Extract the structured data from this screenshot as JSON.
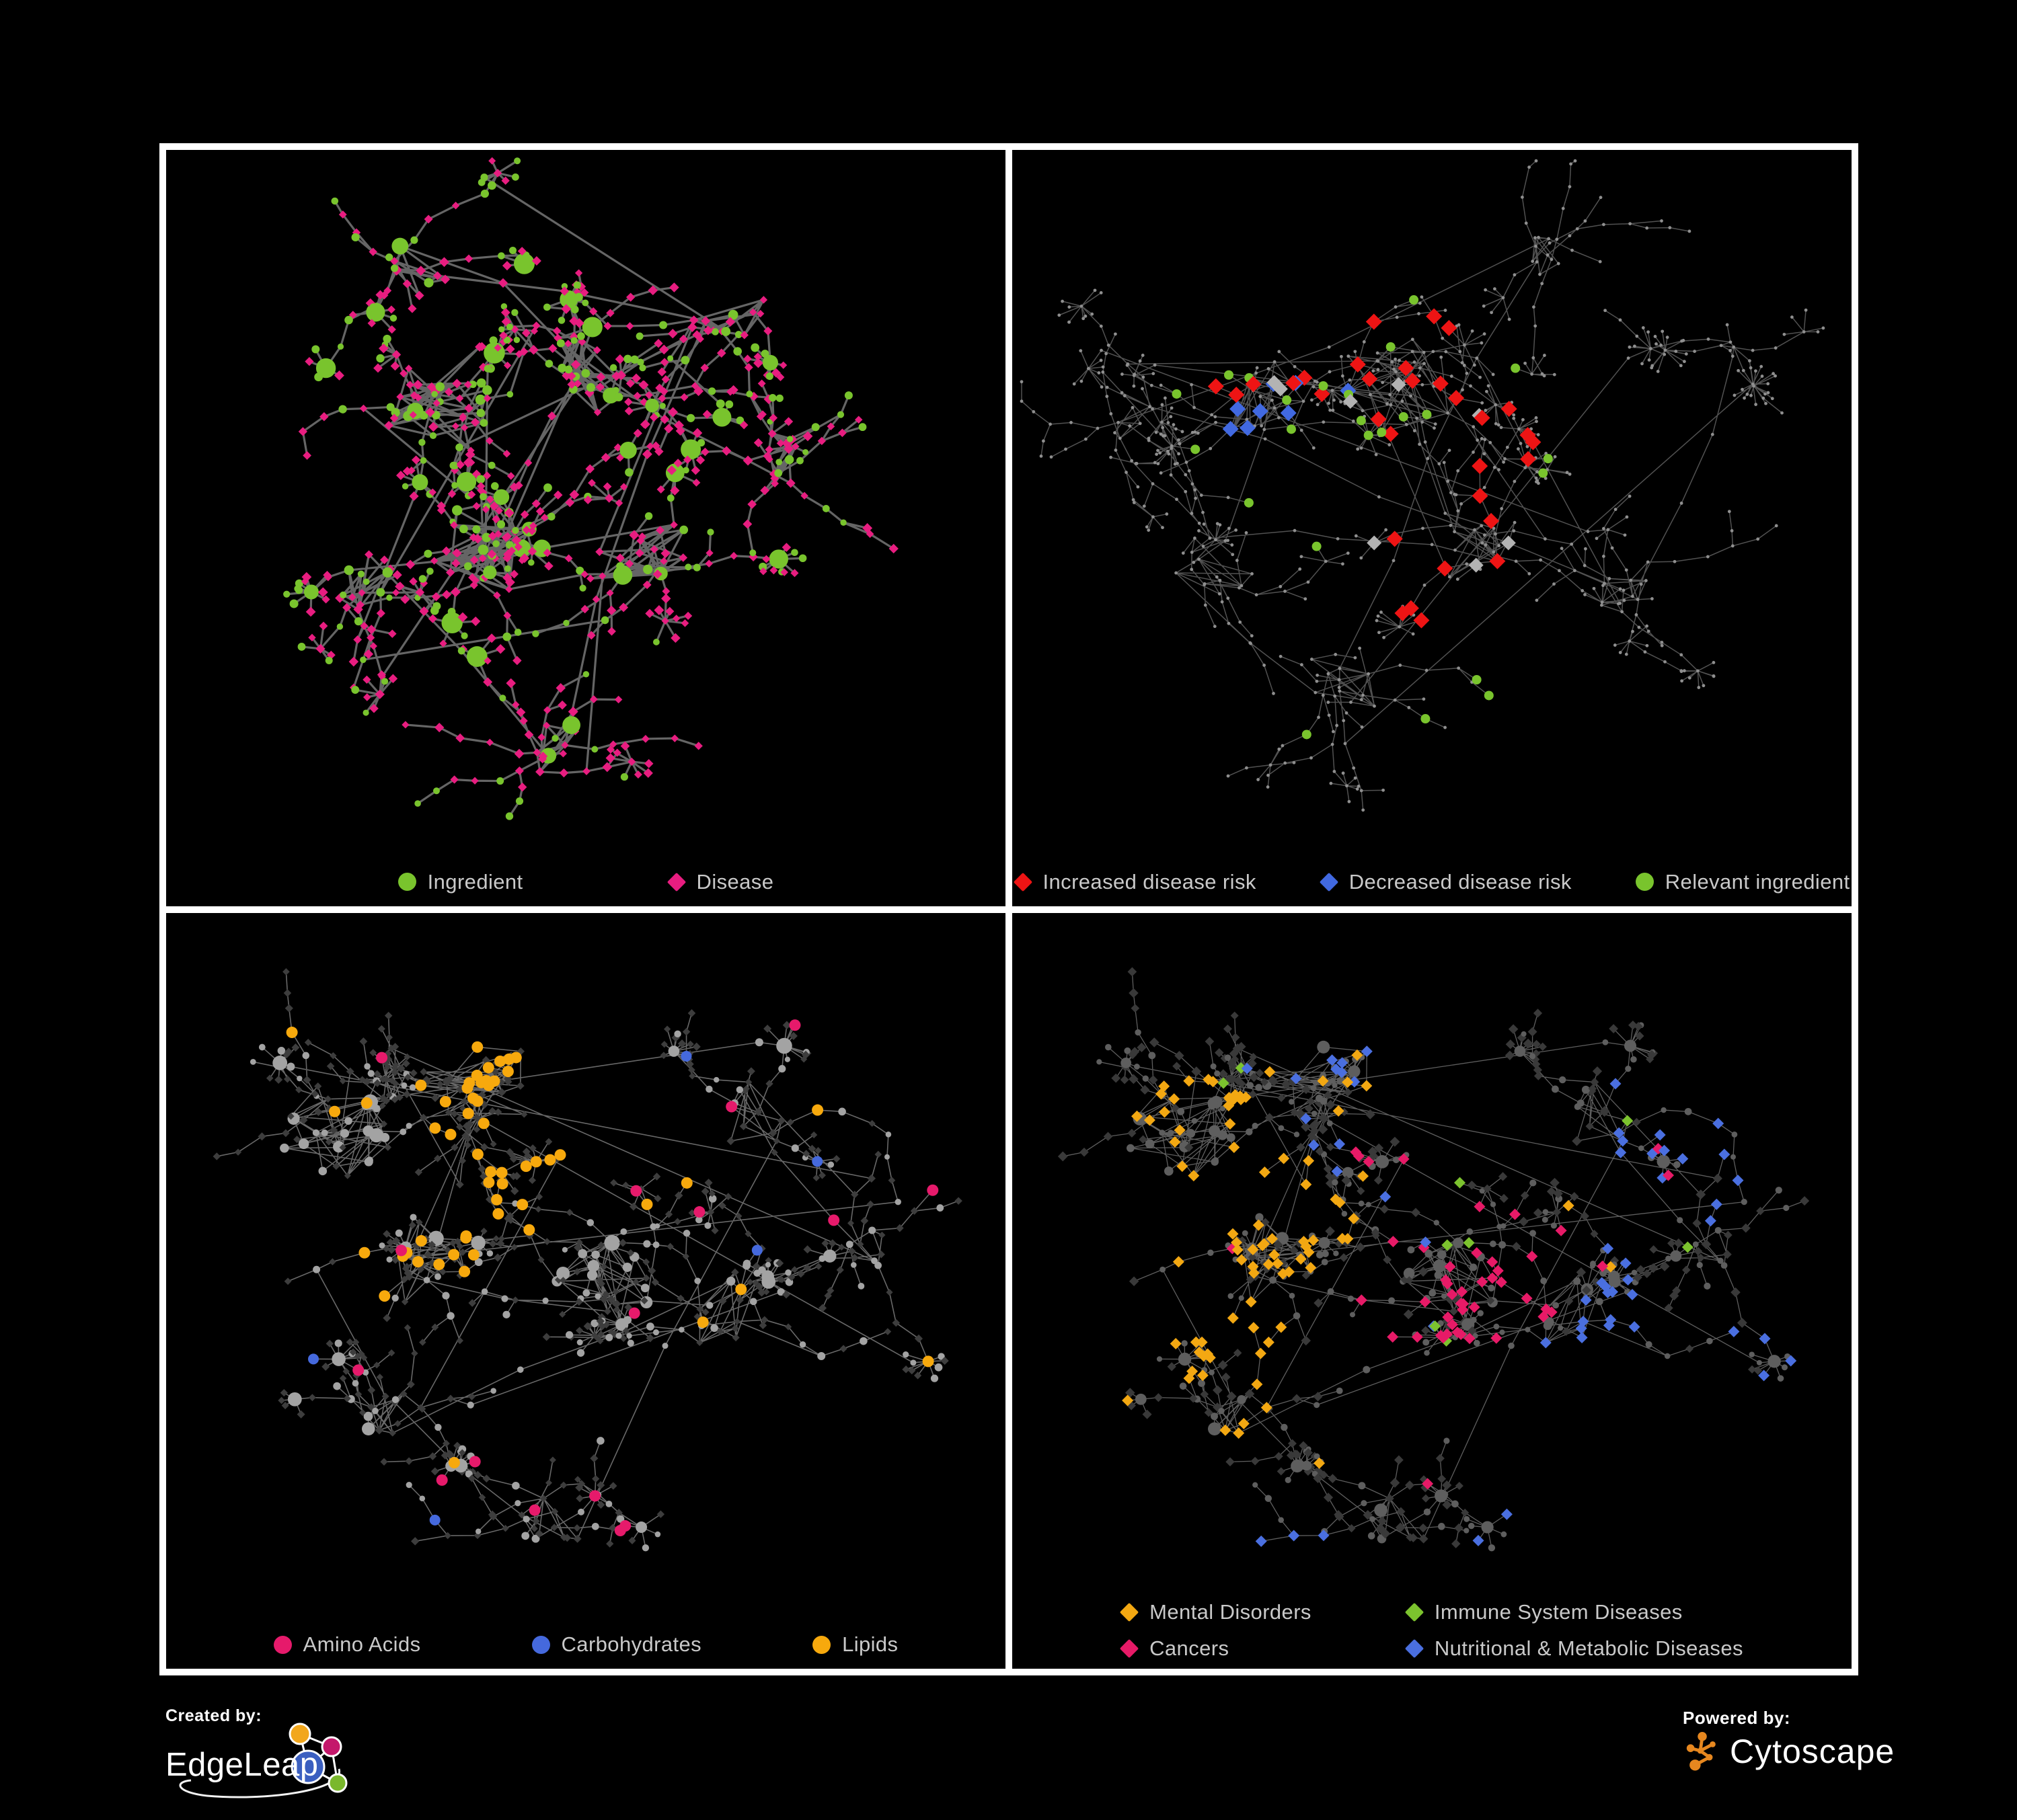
{
  "branding": {
    "created_by_label": "Created by:",
    "created_by_name": "EdgeLeap",
    "powered_by_label": "Powered by:",
    "powered_by_name": "Cytoscape"
  },
  "colors": {
    "background": "#000000",
    "frame": "#ffffff",
    "legend_text": "#c9c9c9",
    "cytoscape_orange": "#e6871f",
    "edgeleap_logo": [
      "#f2a71c",
      "#c4176b",
      "#3b5fc0",
      "#7ab82c"
    ]
  },
  "panels": [
    {
      "id": "ingredient-disease",
      "legend": [
        {
          "shape": "circle",
          "color": "#79c42d",
          "label": "Ingredient"
        },
        {
          "shape": "diamond",
          "color": "#e81d80",
          "label": "Disease"
        }
      ],
      "styleSeed": 101,
      "network": {
        "seed": 11,
        "kindSeed": 5,
        "circleProb": 0.3,
        "interLinks": 14,
        "clusters": [
          [
            0.33,
            0.33,
            34,
            9,
            0.045
          ],
          [
            0.5,
            0.29,
            26,
            8,
            0.04
          ],
          [
            0.37,
            0.52,
            30,
            9,
            0.045
          ],
          [
            0.57,
            0.54,
            20,
            8,
            0.038
          ],
          [
            0.24,
            0.58,
            12,
            7,
            0.03
          ],
          [
            0.46,
            0.79,
            10,
            7,
            0.028
          ],
          [
            0.67,
            0.22,
            10,
            7,
            0.03
          ],
          [
            0.29,
            0.16,
            10,
            6,
            0.028
          ],
          [
            0.72,
            0.42,
            8,
            6,
            0.025
          ]
        ]
      },
      "style": {
        "mode": "kinds",
        "edge": {
          "color": "#6e6e6e",
          "width": 3.2,
          "opacity": 0.92
        },
        "circle": {
          "fill": "#79c42d",
          "r_core": [
            5,
            8
          ],
          "r_hub": [
            10,
            16
          ],
          "r_small": [
            4.5,
            6.5
          ]
        },
        "diamond": {
          "fill": "#e81d80",
          "s": [
            5.5,
            7.5
          ]
        }
      },
      "highlights": []
    },
    {
      "id": "disease-risk",
      "legend": [
        {
          "shape": "diamond",
          "color": "#ee1414",
          "label": "Increased disease risk"
        },
        {
          "shape": "diamond",
          "color": "#4169e1",
          "label": "Decreased disease risk"
        },
        {
          "shape": "circle",
          "color": "#79c42d",
          "label": "Relevant ingredient"
        }
      ],
      "styleSeed": 102,
      "network": {
        "seed": 22,
        "kindSeed": 6,
        "circleProb": 0.3,
        "interLinks": 12,
        "clusters": [
          [
            0.3,
            0.33,
            22,
            9,
            0.04
          ],
          [
            0.47,
            0.3,
            26,
            10,
            0.045
          ],
          [
            0.56,
            0.52,
            16,
            8,
            0.035
          ],
          [
            0.24,
            0.55,
            12,
            8,
            0.03
          ],
          [
            0.4,
            0.7,
            10,
            8,
            0.03
          ],
          [
            0.62,
            0.14,
            8,
            7,
            0.025
          ],
          [
            0.14,
            0.36,
            8,
            7,
            0.025
          ],
          [
            0.74,
            0.58,
            10,
            7,
            0.03
          ],
          [
            0.85,
            0.25,
            6,
            5,
            0.02
          ]
        ]
      },
      "style": {
        "mode": "dots",
        "edge": {
          "color": "#5a5a5a",
          "width": 1.5,
          "opacity": 0.9
        },
        "dots": {
          "fill": "#8f8f8f",
          "r": 2.4
        }
      },
      "highlights": [
        {
          "shape": "diamond",
          "color": "#ee1414",
          "size": 12,
          "target": "any",
          "scatter": 0,
          "regions": [
            [
              0.44,
              0.33,
              0.17,
              16
            ],
            [
              0.29,
              0.27,
              0.07,
              4
            ],
            [
              0.55,
              0.55,
              0.1,
              5
            ],
            [
              0.7,
              0.74,
              0.05,
              3
            ],
            [
              0.64,
              0.42,
              0.05,
              3
            ],
            [
              0.52,
              0.63,
              0.06,
              3
            ]
          ]
        },
        {
          "shape": "diamond",
          "color": "#4169e1",
          "size": 12,
          "target": "any",
          "scatter": 0,
          "regions": [
            [
              0.29,
              0.34,
              0.07,
              6
            ],
            [
              0.8,
              0.33,
              0.04,
              2
            ],
            [
              0.37,
              0.3,
              0.04,
              2
            ]
          ]
        },
        {
          "shape": "diamond",
          "color": "#b3b3b3",
          "size": 11,
          "target": "any",
          "scatter": 0,
          "regions": [
            [
              0.3,
              0.29,
              0.05,
              2
            ],
            [
              0.48,
              0.38,
              0.09,
              3
            ],
            [
              0.55,
              0.58,
              0.07,
              2
            ],
            [
              0.42,
              0.55,
              0.05,
              1
            ]
          ]
        },
        {
          "shape": "circle",
          "color": "#79c42d",
          "size": 7,
          "target": "any",
          "scatter": 2,
          "regions": [
            [
              0.36,
              0.33,
              0.18,
              16
            ],
            [
              0.24,
              0.2,
              0.09,
              4
            ],
            [
              0.56,
              0.74,
              0.07,
              3
            ],
            [
              0.66,
              0.4,
              0.05,
              2
            ]
          ]
        }
      ]
    },
    {
      "id": "nutrient-classes",
      "legend": [
        {
          "shape": "circle",
          "color": "#e61a6b",
          "label": "Amino Acids"
        },
        {
          "shape": "circle",
          "color": "#4569dd",
          "label": "Carbohydrates"
        },
        {
          "shape": "circle",
          "color": "#f7a90d",
          "label": "Lipids"
        }
      ],
      "styleSeed": 103,
      "network": {
        "seed": 33,
        "kindSeed": 7,
        "circleProb": 0.36,
        "interLinks": 13,
        "clusters": [
          [
            0.21,
            0.29,
            28,
            9,
            0.045
          ],
          [
            0.38,
            0.23,
            22,
            8,
            0.04
          ],
          [
            0.31,
            0.46,
            20,
            8,
            0.04
          ],
          [
            0.52,
            0.48,
            22,
            9,
            0.04
          ],
          [
            0.66,
            0.52,
            14,
            7,
            0.032
          ],
          [
            0.26,
            0.66,
            10,
            7,
            0.028
          ],
          [
            0.46,
            0.8,
            10,
            7,
            0.028
          ],
          [
            0.7,
            0.26,
            10,
            6,
            0.028
          ],
          [
            0.84,
            0.45,
            6,
            5,
            0.02
          ]
        ]
      },
      "style": {
        "mode": "kinds",
        "edge": {
          "color": "#7a7a7a",
          "width": 1.6,
          "opacity": 0.85
        },
        "circle": {
          "fill": "#a3a3a3",
          "r_core": [
            5,
            8
          ],
          "r_hub": [
            8,
            12
          ],
          "r_small": [
            4,
            6
          ]
        },
        "diamond": {
          "fill": "#3d3d3d",
          "s": [
            5,
            6.2
          ]
        }
      },
      "highlights": [
        {
          "shape": "circle",
          "color": "#f7a90d",
          "size": 8.5,
          "target": "circle",
          "scatter": 14,
          "regions": [
            [
              0.43,
              0.24,
              0.13,
              32
            ],
            [
              0.33,
              0.45,
              0.12,
              12
            ]
          ]
        },
        {
          "shape": "circle",
          "color": "#4569dd",
          "size": 8,
          "target": "circle",
          "scatter": 5,
          "regions": [
            [
              0.42,
              0.19,
              0.09,
              8
            ]
          ]
        },
        {
          "shape": "circle",
          "color": "#e61a6b",
          "size": 8.5,
          "target": "circle",
          "scatter": 16,
          "regions": []
        }
      ]
    },
    {
      "id": "disease-classes",
      "legend": [
        {
          "shape": "diamond",
          "color": "#f3a812",
          "label": "Mental Disorders"
        },
        {
          "shape": "diamond",
          "color": "#7cc32e",
          "label": "Immune System Diseases"
        },
        {
          "shape": "diamond",
          "color": "#e71a67",
          "label": "Cancers"
        },
        {
          "shape": "diamond",
          "color": "#4a6fe0",
          "label": "Nutritional & Metabolic Diseases"
        }
      ],
      "styleSeed": 104,
      "network": {
        "seed": 33,
        "kindSeed": 7,
        "circleProb": 0.36,
        "interLinks": 13,
        "clusters": [
          [
            0.21,
            0.29,
            28,
            9,
            0.045
          ],
          [
            0.38,
            0.23,
            22,
            8,
            0.04
          ],
          [
            0.31,
            0.46,
            20,
            8,
            0.04
          ],
          [
            0.52,
            0.48,
            22,
            9,
            0.04
          ],
          [
            0.66,
            0.52,
            14,
            7,
            0.032
          ],
          [
            0.26,
            0.66,
            10,
            7,
            0.028
          ],
          [
            0.46,
            0.8,
            10,
            7,
            0.028
          ],
          [
            0.7,
            0.26,
            10,
            6,
            0.028
          ],
          [
            0.84,
            0.45,
            6,
            5,
            0.02
          ]
        ]
      },
      "style": {
        "mode": "kinds",
        "edge": {
          "color": "#767676",
          "width": 1.3,
          "opacity": 0.8
        },
        "circle": {
          "fill": "#5e5e5e",
          "r_core": [
            4.5,
            7
          ],
          "r_hub": [
            7,
            10
          ],
          "r_small": [
            4,
            5.5
          ]
        },
        "diamond": {
          "fill": "#393939",
          "s": [
            6,
            7.5
          ]
        }
      },
      "highlights": [
        {
          "shape": "diamond",
          "color": "#f3a812",
          "size": 8.5,
          "target": "diamond",
          "scatter": 8,
          "regions": [
            [
              0.28,
              0.46,
              0.14,
              45
            ],
            [
              0.22,
              0.33,
              0.1,
              20
            ],
            [
              0.26,
              0.64,
              0.08,
              10
            ],
            [
              0.4,
              0.22,
              0.05,
              4
            ]
          ]
        },
        {
          "shape": "diamond",
          "color": "#e71a67",
          "size": 8.5,
          "target": "diamond",
          "scatter": 8,
          "regions": [
            [
              0.53,
              0.5,
              0.12,
              35
            ],
            [
              0.45,
              0.29,
              0.05,
              4
            ],
            [
              0.88,
              0.22,
              0.06,
              5
            ]
          ]
        },
        {
          "shape": "diamond",
          "color": "#4a6fe0",
          "size": 8.5,
          "target": "diamond",
          "scatter": 12,
          "regions": [
            [
              0.68,
              0.51,
              0.09,
              16
            ],
            [
              0.82,
              0.3,
              0.1,
              12
            ],
            [
              0.62,
              0.8,
              0.08,
              7
            ],
            [
              0.33,
              0.87,
              0.06,
              5
            ],
            [
              0.36,
              0.13,
              0.08,
              6
            ],
            [
              0.88,
              0.58,
              0.06,
              4
            ]
          ]
        },
        {
          "shape": "diamond",
          "color": "#7cc32e",
          "size": 8.5,
          "target": "diamond",
          "scatter": 4,
          "regions": [
            [
              0.52,
              0.42,
              0.08,
              3
            ],
            [
              0.47,
              0.6,
              0.06,
              2
            ]
          ]
        }
      ]
    }
  ]
}
